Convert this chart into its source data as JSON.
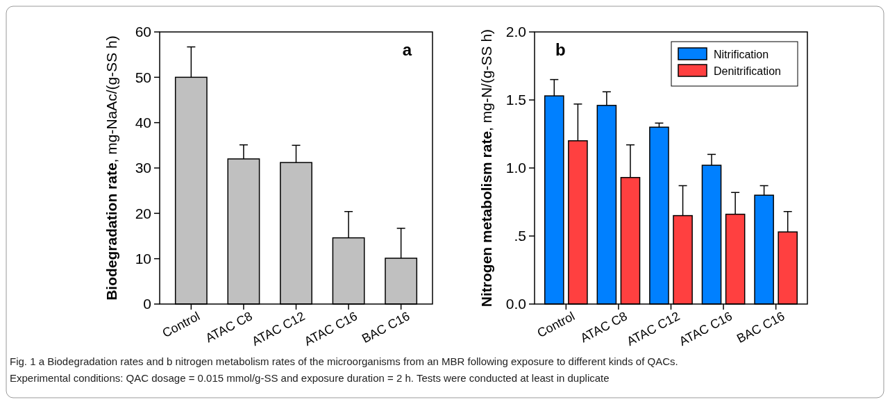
{
  "chart_data": [
    {
      "type": "bar",
      "title": "a",
      "ylabel": "Biodegradation rate, mg-NaAc/(g-SS h)",
      "categories": [
        "Control",
        "ATAC C8",
        "ATAC C12",
        "ATAC C16",
        "BAC C16"
      ],
      "series": [
        {
          "color": "#c0c0c0",
          "values": [
            50,
            32,
            31.2,
            14.6,
            10.1
          ],
          "errors": [
            [
              50,
              56.7
            ],
            [
              32,
              35.1
            ],
            [
              31.2,
              35
            ],
            [
              14.6,
              20.4
            ],
            [
              10.1,
              16.7
            ]
          ]
        }
      ],
      "ylim": [
        0,
        60
      ],
      "yticks": [
        0,
        10,
        20,
        30,
        40,
        50,
        60
      ],
      "legend": false,
      "grid": false,
      "annotations": [
        "Fig. 1 a Biodegradation rates and b nitrogen metabolism rates of the microorganisms from an MBR following exposure to different kinds of QACs.",
        "Experimental conditions: QAC dosage = 0.015 mmol/g-SS and exposure duration = 2 h. Tests were conducted at least in duplicate"
      ]
    },
    {
      "type": "bar",
      "title": "b",
      "ylabel": "Nitrogen metabolism rate, mg-N/(g-SS h)",
      "categories": [
        "Control",
        "ATAC C8",
        "ATAC C12",
        "ATAC C16",
        "BAC C16"
      ],
      "series": [
        {
          "name": "Nitrification",
          "color": "#0080ff",
          "values": [
            1.53,
            1.46,
            1.3,
            1.02,
            0.8
          ],
          "errors": [
            [
              1.53,
              1.65
            ],
            [
              1.46,
              1.56
            ],
            [
              1.3,
              1.33
            ],
            [
              1.02,
              1.1
            ],
            [
              0.8,
              0.87
            ]
          ]
        },
        {
          "name": "Denitrification",
          "color": "#ff4040",
          "values": [
            1.2,
            0.93,
            0.65,
            0.66,
            0.53
          ],
          "errors": [
            [
              1.2,
              1.47
            ],
            [
              0.93,
              1.17
            ],
            [
              0.65,
              0.87
            ],
            [
              0.66,
              0.82
            ],
            [
              0.53,
              0.68
            ]
          ]
        }
      ],
      "ylim": [
        0,
        2
      ],
      "yticks": [
        {
          "value": 0,
          "label": "0.0"
        },
        {
          "value": 0.5,
          "label": ".5"
        },
        {
          "value": 1,
          "label": "1.0"
        },
        {
          "value": 1.5,
          "label": "1.5"
        },
        {
          "value": 2,
          "label": "2.0"
        }
      ],
      "legend": "top right",
      "grid": false
    }
  ]
}
